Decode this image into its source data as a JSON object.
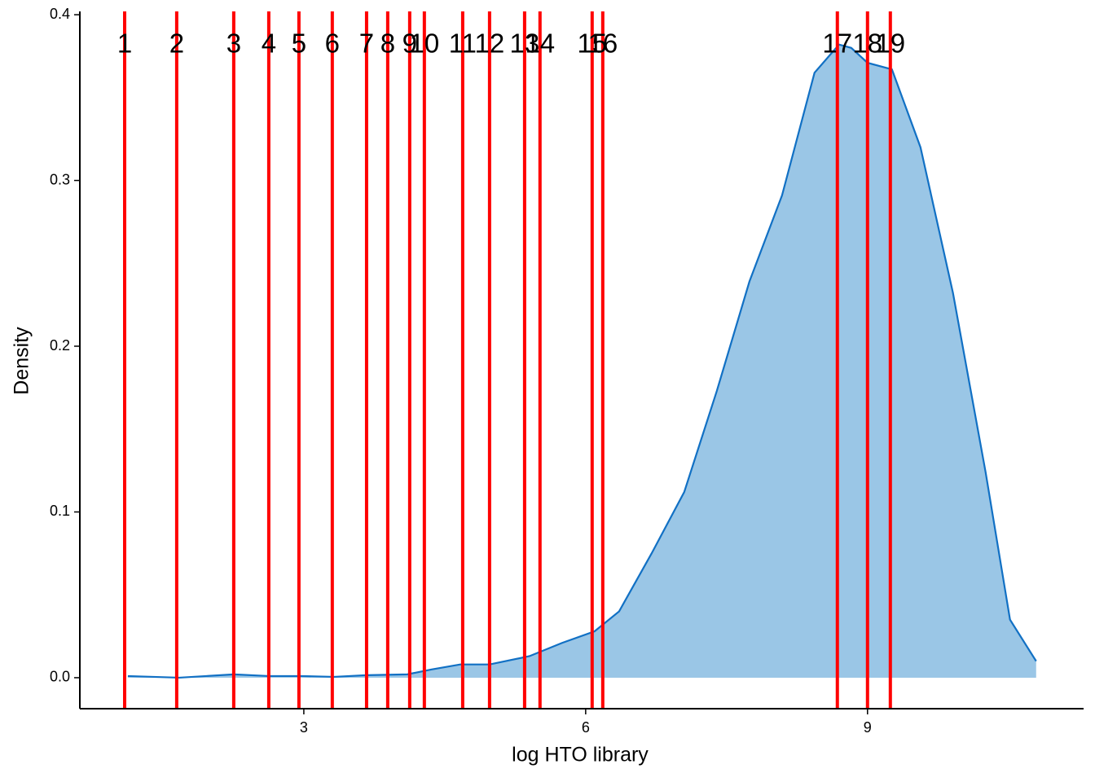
{
  "chart_data": {
    "type": "density",
    "xlabel": "log HTO library",
    "ylabel": "Density",
    "x": [
      1.127,
      1.673,
      2.254,
      2.627,
      2.974,
      3.321,
      3.668,
      4.101,
      4.361,
      4.665,
      4.977,
      5.402,
      5.749,
      6.095,
      6.356,
      6.702,
      7.049,
      7.396,
      7.743,
      8.09,
      8.436,
      8.697,
      8.827,
      9.0,
      9.26,
      9.564,
      9.91,
      10.257,
      10.517,
      10.795
    ],
    "values": [
      0.001,
      0.0,
      0.002,
      0.001,
      0.001,
      0.0005,
      0.0015,
      0.002,
      0.005,
      0.008,
      0.008,
      0.013,
      0.021,
      0.028,
      0.04,
      0.075,
      0.112,
      0.173,
      0.239,
      0.291,
      0.365,
      0.382,
      0.38,
      0.371,
      0.367,
      0.32,
      0.232,
      0.124,
      0.035,
      0.01
    ],
    "color": "#1170c4",
    "fill": "#9ac6e6",
    "xlim": [
      0.616,
      11.3
    ],
    "ylim": [
      -0.0187,
      0.402
    ],
    "xticks": [
      3,
      6,
      9
    ],
    "yticks": [
      {
        "value": 0,
        "label": "0.0"
      },
      {
        "value": 0.1,
        "label": "0.1"
      },
      {
        "value": 0.2,
        "label": "0.2"
      },
      {
        "value": 0.3,
        "label": "0.3"
      },
      {
        "value": 0.4,
        "label": "0.4"
      }
    ],
    "vlines": {
      "color": "#ff0000",
      "x": [
        1.093,
        1.647,
        2.254,
        2.627,
        2.948,
        3.303,
        3.668,
        3.893,
        4.127,
        4.283,
        4.691,
        4.977,
        5.35,
        5.514,
        6.069,
        6.182,
        8.679,
        9.0,
        9.243
      ],
      "labels": [
        "1",
        "2",
        "3",
        "4",
        "5",
        "6",
        "7",
        "8",
        "9",
        "10",
        "11",
        "12",
        "13",
        "14",
        "15",
        "16",
        "17",
        "18",
        "19"
      ]
    }
  }
}
